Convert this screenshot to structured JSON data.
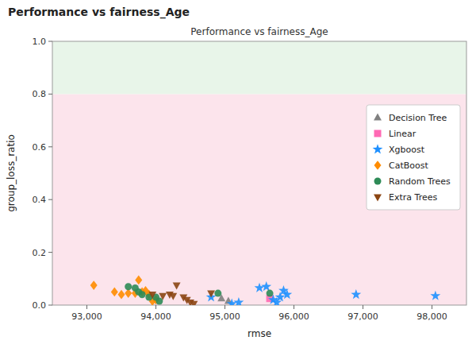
{
  "chart_data": {
    "type": "scatter",
    "title": "Performance vs fairness_Age",
    "subtitle": "Performance vs fairness_Age",
    "x_label": "rmse",
    "y_label": "group_loss_ratio",
    "xlim": [
      92500,
      98500
    ],
    "ylim": [
      0.0,
      1.0
    ],
    "xticks": [
      {
        "value": 93000,
        "label": "93,000"
      },
      {
        "value": 94000,
        "label": "94,000"
      },
      {
        "value": 95000,
        "label": "95,000"
      },
      {
        "value": 96000,
        "label": "96,000"
      },
      {
        "value": 97000,
        "label": "97,000"
      },
      {
        "value": 98000,
        "label": "98,000"
      }
    ],
    "yticks": [
      {
        "value": 0.0,
        "label": "0.0"
      },
      0.2,
      0.4,
      0.6,
      0.8,
      {
        "value": 1.0,
        "label": "1.0"
      }
    ],
    "grid": false,
    "legend": "right",
    "bands": [
      {
        "from": 0.0,
        "to": 0.8,
        "color": "#fce4ec"
      },
      {
        "from": 0.8,
        "to": 1.0,
        "color": "#e8f5e9"
      }
    ],
    "series": [
      {
        "name": "Decision Tree",
        "color": "#808080",
        "marker": "triangle-up",
        "x": [
          94950,
          95050
        ],
        "values": [
          0.025,
          0.015
        ]
      },
      {
        "name": "Linear",
        "color": "#ff69b4",
        "marker": "square",
        "x": [
          95650
        ],
        "values": [
          0.025
        ]
      },
      {
        "name": "Xgboost",
        "color": "#1e90ff",
        "marker": "star",
        "x": [
          94800,
          95100,
          95200,
          95500,
          95600,
          95700,
          95750,
          95800,
          95850,
          95900,
          96900,
          98050
        ],
        "values": [
          0.03,
          0.005,
          0.01,
          0.065,
          0.07,
          0.02,
          0.01,
          0.03,
          0.055,
          0.04,
          0.04,
          0.035
        ]
      },
      {
        "name": "CatBoost",
        "color": "#ff8c00",
        "marker": "diamond",
        "x": [
          93100,
          93400,
          93500,
          93600,
          93700,
          93750,
          93800,
          93850,
          93900,
          93950,
          94000
        ],
        "values": [
          0.075,
          0.05,
          0.04,
          0.045,
          0.045,
          0.095,
          0.05,
          0.055,
          0.04,
          0.015,
          0.02
        ]
      },
      {
        "name": "Random Trees",
        "color": "#2e8b57",
        "marker": "circle",
        "x": [
          93600,
          93700,
          93750,
          93800,
          93900,
          94000,
          94050,
          94900,
          95650
        ],
        "values": [
          0.07,
          0.065,
          0.05,
          0.04,
          0.03,
          0.03,
          0.015,
          0.045,
          0.045
        ]
      },
      {
        "name": "Extra Trees",
        "color": "#8b4513",
        "marker": "triangle-down",
        "x": [
          93950,
          94100,
          94200,
          94250,
          94300,
          94400,
          94450,
          94500,
          94550,
          94800
        ],
        "values": [
          0.04,
          0.035,
          0.04,
          0.035,
          0.075,
          0.03,
          0.02,
          0.01,
          0.005,
          0.045
        ]
      }
    ]
  }
}
